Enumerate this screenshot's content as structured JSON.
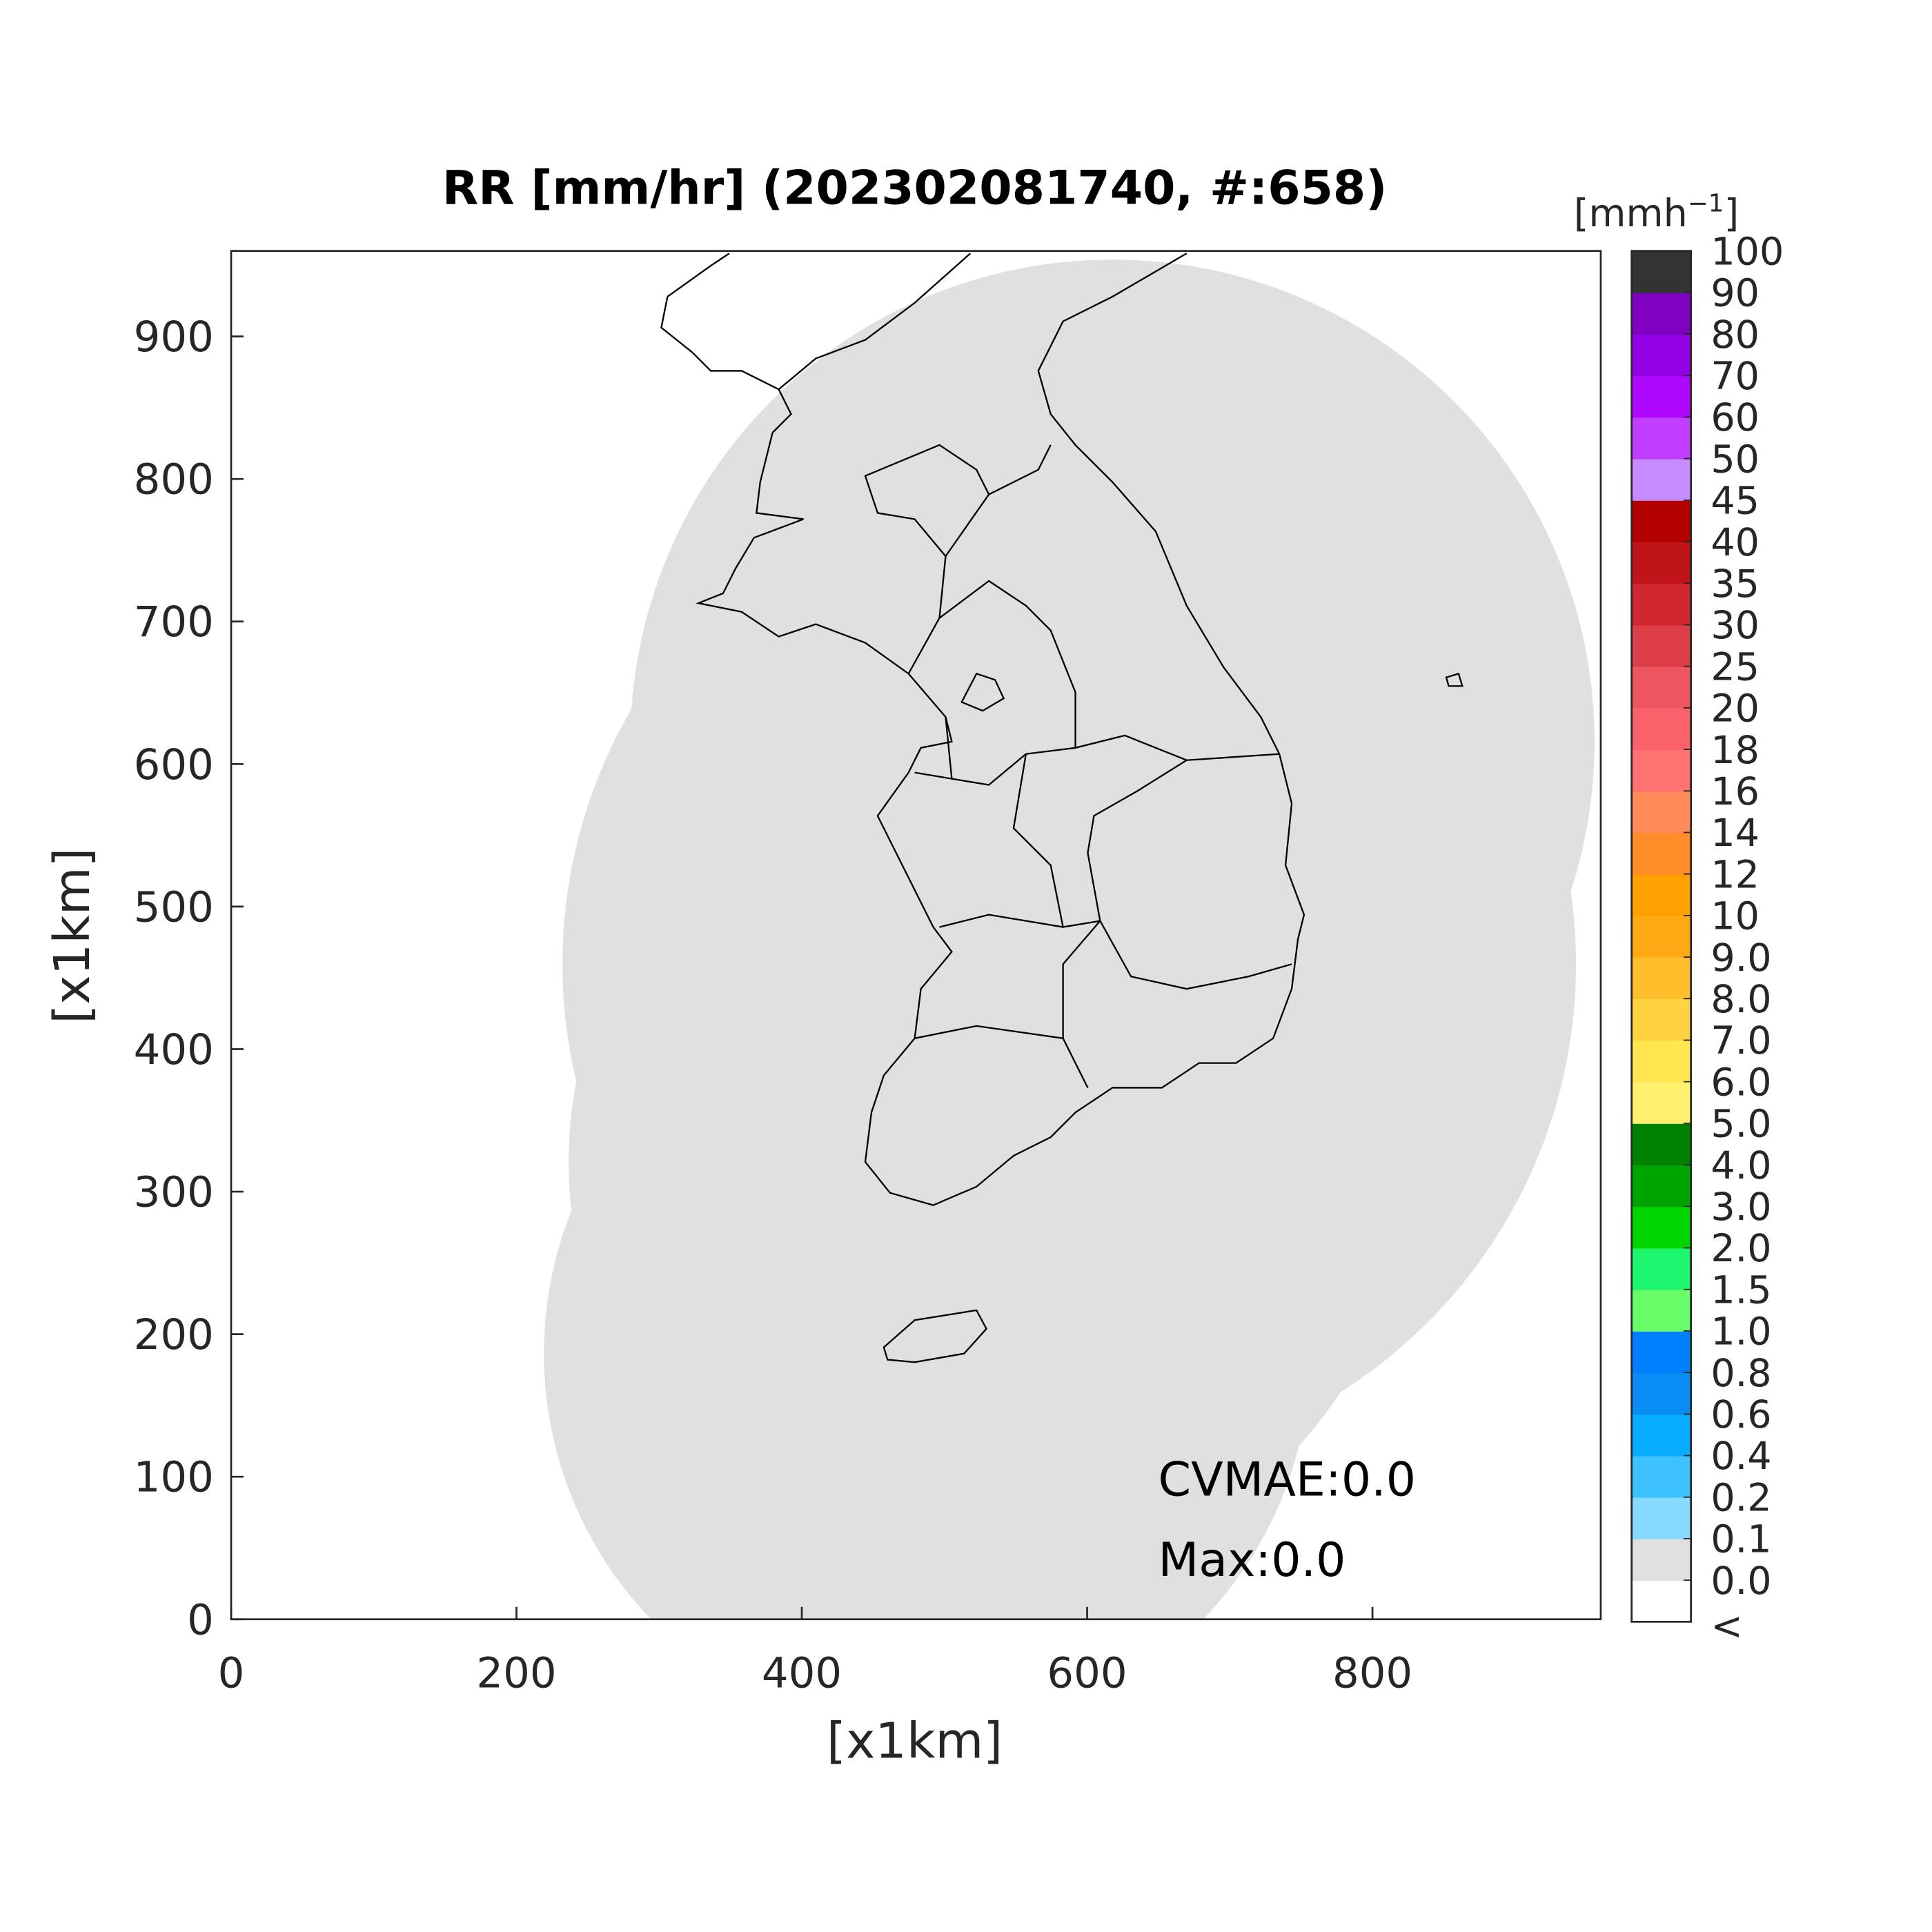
{
  "chart_data": {
    "type": "map",
    "title": "RR [mm/hr] (202302081740, #:658)",
    "xlabel": "[x1km]",
    "ylabel": "[x1km]",
    "xlim": [
      0,
      960
    ],
    "ylim": [
      0,
      960
    ],
    "xticks": [
      0,
      200,
      400,
      600,
      800
    ],
    "yticks": [
      0,
      100,
      200,
      300,
      400,
      500,
      600,
      700,
      800,
      900
    ],
    "annotations": [
      "CVMAE:0.0",
      "Max:0.0"
    ],
    "colorbar": {
      "label": [
        "[mmh",
        "−1",
        "]"
      ],
      "under_label": "<",
      "ticks": [
        {
          "value": 0,
          "label": "0.0"
        },
        0.1,
        0.2,
        0.4,
        0.6,
        0.8,
        {
          "value": 1,
          "label": "1.0"
        },
        1.5,
        {
          "value": 2,
          "label": "2.0"
        },
        {
          "value": 3,
          "label": "3.0"
        },
        {
          "value": 4,
          "label": "4.0"
        },
        {
          "value": 5,
          "label": "5.0"
        },
        {
          "value": 6,
          "label": "6.0"
        },
        {
          "value": 7,
          "label": "7.0"
        },
        {
          "value": 8,
          "label": "8.0"
        },
        {
          "value": 9,
          "label": "9.0"
        },
        10,
        12,
        14,
        16,
        18,
        20,
        25,
        30,
        35,
        40,
        45,
        50,
        60,
        70,
        80,
        90,
        100
      ],
      "colors": [
        "#ffffff",
        "#e0e0e0",
        "#87d9ff",
        "#3ec1ff",
        "#07abff",
        "#0a8cf5",
        "#007fff",
        "#69fc69",
        "#1ef56e",
        "#00d500",
        "#00a400",
        "#008000",
        "#fff06e",
        "#ffe650",
        "#ffd242",
        "#ffbe2c",
        "#ffaa14",
        "#ffa000",
        "#ff8c28",
        "#ff8a5a",
        "#ff7070",
        "#f86268",
        "#ed5560",
        "#dd3e47",
        "#d02730",
        "#c11418",
        "#b30000",
        "#c68cff",
        "#c13dff",
        "#ad07ff",
        "#9300e4",
        "#7f00bf",
        "#333333"
      ]
    }
  }
}
